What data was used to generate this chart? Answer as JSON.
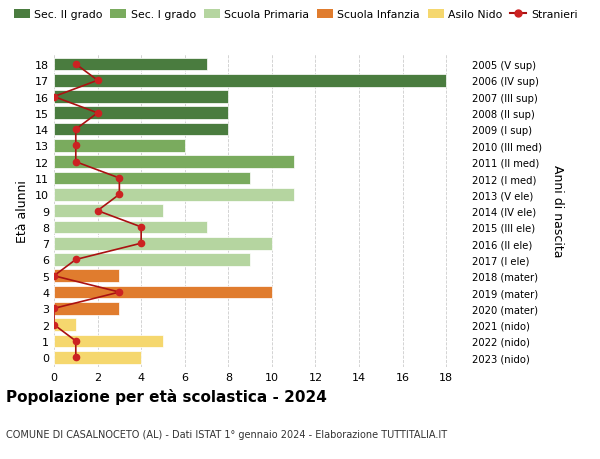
{
  "ages": [
    18,
    17,
    16,
    15,
    14,
    13,
    12,
    11,
    10,
    9,
    8,
    7,
    6,
    5,
    4,
    3,
    2,
    1,
    0
  ],
  "years": [
    "2005 (V sup)",
    "2006 (IV sup)",
    "2007 (III sup)",
    "2008 (II sup)",
    "2009 (I sup)",
    "2010 (III med)",
    "2011 (II med)",
    "2012 (I med)",
    "2013 (V ele)",
    "2014 (IV ele)",
    "2015 (III ele)",
    "2016 (II ele)",
    "2017 (I ele)",
    "2018 (mater)",
    "2019 (mater)",
    "2020 (mater)",
    "2021 (nido)",
    "2022 (nido)",
    "2023 (nido)"
  ],
  "bar_values": [
    7,
    18,
    8,
    8,
    8,
    6,
    11,
    9,
    11,
    5,
    7,
    10,
    9,
    3,
    10,
    3,
    1,
    5,
    4
  ],
  "bar_colors": [
    "#4a7c3f",
    "#4a7c3f",
    "#4a7c3f",
    "#4a7c3f",
    "#4a7c3f",
    "#7aab5e",
    "#7aab5e",
    "#7aab5e",
    "#b5d5a0",
    "#b5d5a0",
    "#b5d5a0",
    "#b5d5a0",
    "#b5d5a0",
    "#e07c2e",
    "#e07c2e",
    "#e07c2e",
    "#f5d76e",
    "#f5d76e",
    "#f5d76e"
  ],
  "stranieri_values": [
    1,
    2,
    0,
    2,
    1,
    1,
    1,
    3,
    3,
    2,
    4,
    4,
    1,
    0,
    3,
    0,
    0,
    1,
    1
  ],
  "ylabel": "Età alunni",
  "ylabel2": "Anni di nascita",
  "title": "Popolazione per età scolastica - 2024",
  "subtitle": "COMUNE DI CASALNOCETO (AL) - Dati ISTAT 1° gennaio 2024 - Elaborazione TUTTITALIA.IT",
  "xlim": [
    0,
    19
  ],
  "xticks": [
    0,
    2,
    4,
    6,
    8,
    10,
    12,
    14,
    16,
    18
  ],
  "legend_labels": [
    "Sec. II grado",
    "Sec. I grado",
    "Scuola Primaria",
    "Scuola Infanzia",
    "Asilo Nido",
    "Stranieri"
  ],
  "legend_colors": [
    "#4a7c3f",
    "#7aab5e",
    "#b5d5a0",
    "#e07c2e",
    "#f5d76e",
    "#cc2222"
  ],
  "bg_color": "#ffffff",
  "grid_color": "#cccccc",
  "bar_height": 0.78,
  "stranieri_line_color": "#aa1111",
  "stranieri_marker_color": "#cc2222"
}
